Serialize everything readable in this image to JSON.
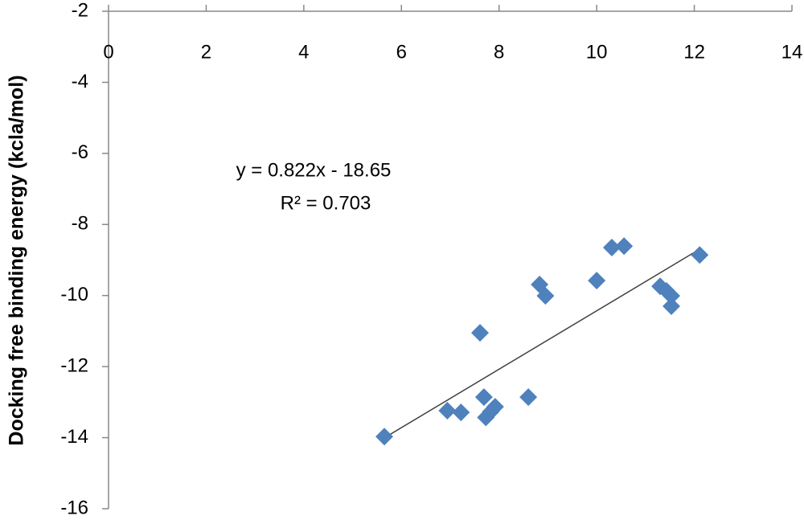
{
  "chart_data": {
    "type": "scatter",
    "y_label": "Docking free binding energy (kcla/mol)",
    "annotation": [
      "y = 0.822x - 18.65",
      "R² = 0.703"
    ],
    "x": [
      5.65,
      6.94,
      7.22,
      7.61,
      7.69,
      7.73,
      7.83,
      7.92,
      8.6,
      8.83,
      8.95,
      10.0,
      10.31,
      10.56,
      11.3,
      11.43,
      11.53,
      11.53,
      12.11
    ],
    "values": [
      -13.97,
      -13.24,
      -13.29,
      -11.05,
      -12.86,
      -13.43,
      -13.27,
      -13.13,
      -12.86,
      -9.69,
      -10.01,
      -9.58,
      -8.65,
      -8.61,
      -9.74,
      -9.87,
      -10.01,
      -10.3,
      -8.86
    ],
    "color": "#4f81bd",
    "trendline": {
      "slope": 0.822,
      "intercept": -18.65,
      "color": "#404040"
    },
    "xlim": [
      0,
      14
    ],
    "xticks": [
      0,
      2,
      4,
      6,
      8,
      10,
      12,
      14
    ],
    "ylim": [
      -16,
      -2
    ],
    "yticks": [
      -2,
      -4,
      -6,
      -8,
      -10,
      -12,
      -14,
      -16
    ]
  }
}
